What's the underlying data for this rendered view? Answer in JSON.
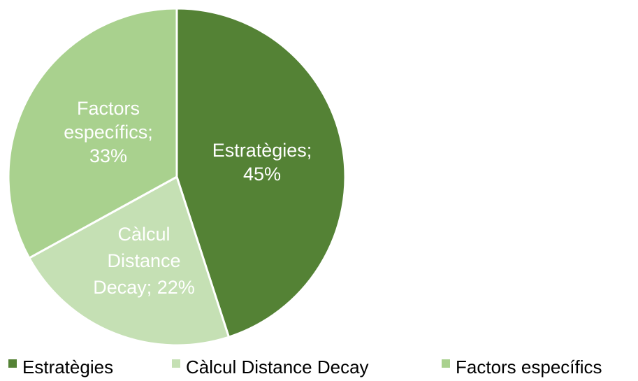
{
  "chart_data": {
    "type": "pie",
    "slices": [
      {
        "label": "Estratègies",
        "value": 45,
        "percent_label": "45%",
        "color": "#548235"
      },
      {
        "label": "Càlcul Distance Decay",
        "value": 22,
        "percent_label": "22%",
        "color": "#C5E0B4"
      },
      {
        "label": "Factors específics",
        "value": 33,
        "percent_label": "33%",
        "color": "#A9D18E"
      }
    ],
    "data_labels": [
      [
        "Estratègies;",
        "45%"
      ],
      [
        "Càlcul",
        "Distance",
        "Decay; 22%"
      ],
      [
        "Factors",
        "específics;",
        "33%"
      ]
    ],
    "legend": {
      "placement": "bottom",
      "entries": [
        "Estratègies",
        "Càlcul Distance Decay",
        "Factors específics"
      ]
    },
    "start_angle": "12 o'clock",
    "direction": "clockwise",
    "slice_border_color": "#FFFFFF"
  }
}
